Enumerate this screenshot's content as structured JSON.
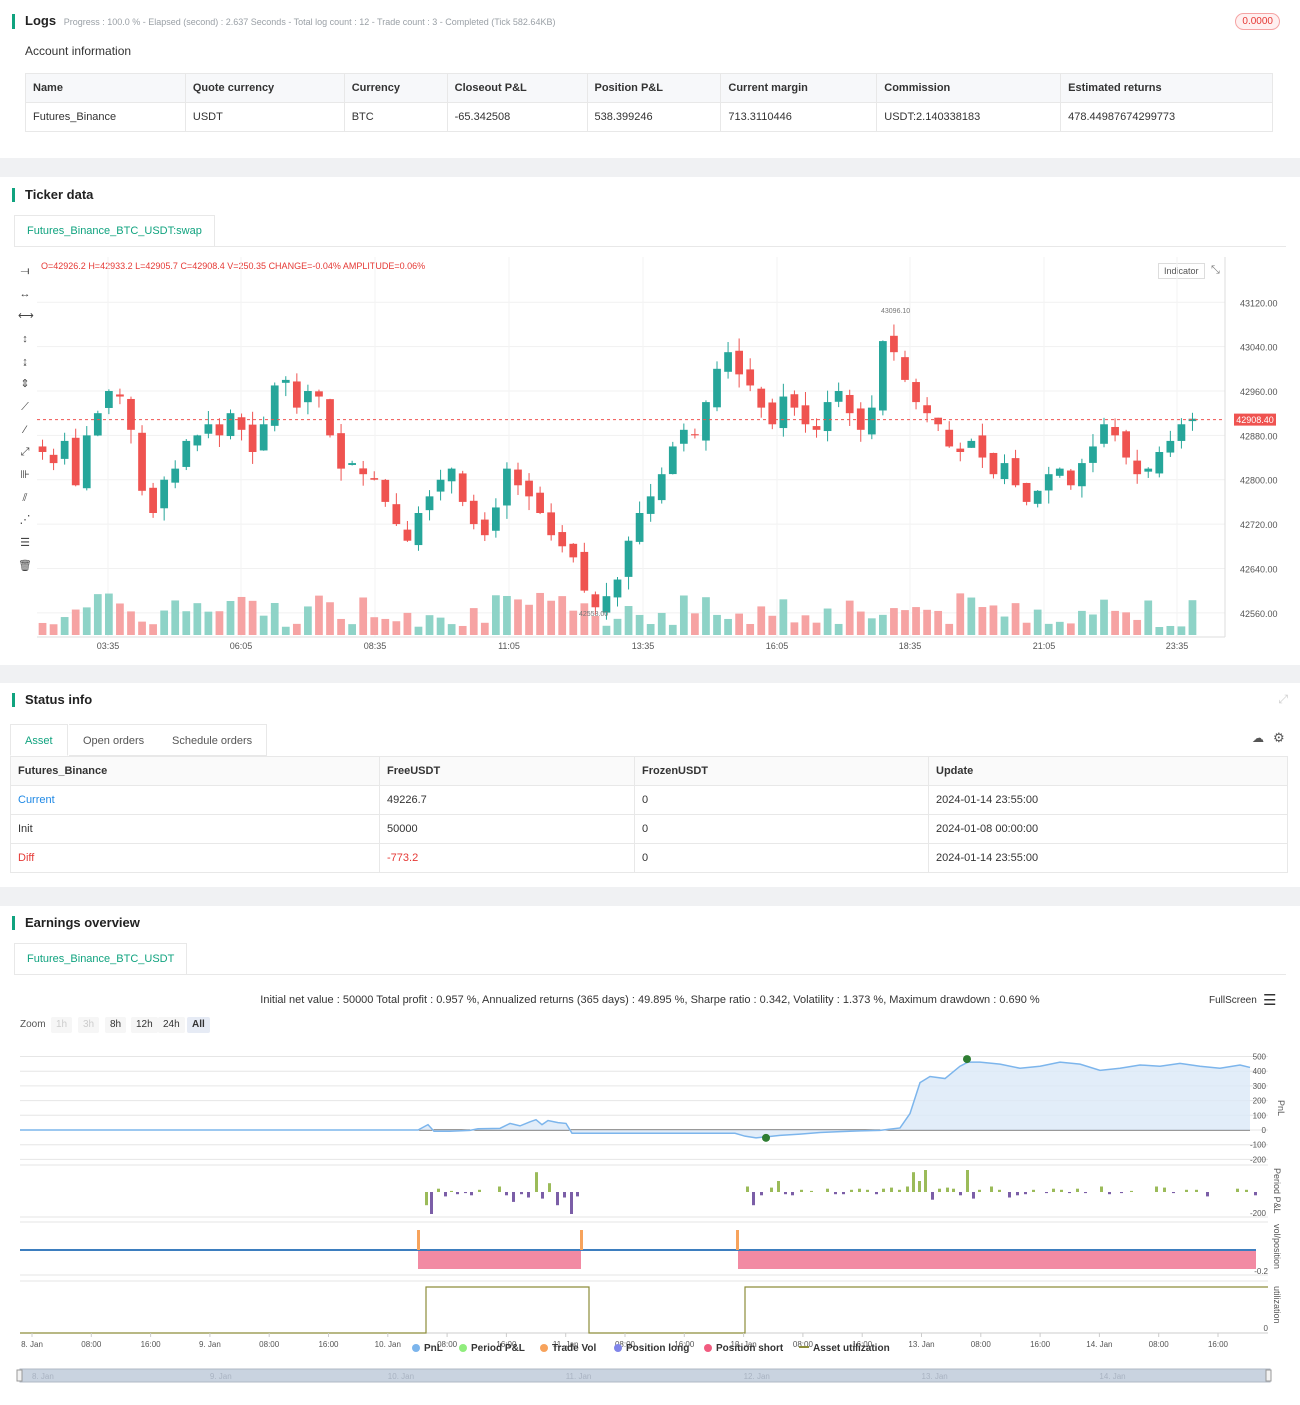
{
  "logs": {
    "title": "Logs",
    "progress_line": "Progress : 100.0 % - Elapsed (second) : 2.637  Seconds - Total log count : 12 - Trade count : 3 - Completed (Tick 582.64KB)",
    "badge": "0.0000",
    "account_label": "Account information",
    "columns": [
      "Name",
      "Quote currency",
      "Currency",
      "Closeout P&L",
      "Position P&L",
      "Current margin",
      "Commission",
      "Estimated returns"
    ],
    "row": [
      "Futures_Binance",
      "USDT",
      "BTC",
      "-65.342508",
      "538.399246",
      "713.3110446",
      "USDT:2.140338183",
      "478.44987674299773"
    ]
  },
  "ticker": {
    "title": "Ticker data",
    "tab": "Futures_Binance_BTC_USDT:swap",
    "ohlc": {
      "o": "O=42926.2",
      "h": "H=42933.2",
      "l": "L=42905.7",
      "c": "C=42908.4",
      "v": "V=250.35",
      "change": "CHANGE=-0.04%",
      "amp": "AMPLITUDE=0.06%"
    },
    "indicator_label": "Indicator",
    "last_price": "42908.40",
    "high_marker": "43096.10",
    "low_marker": "42553.00",
    "y_ticks": [
      "43120.00",
      "43040.00",
      "42960.00",
      "42880.00",
      "42800.00",
      "42720.00",
      "42640.00",
      "42560.00"
    ],
    "x_ticks": [
      "03:35",
      "06:05",
      "08:35",
      "11:05",
      "13:35",
      "16:05",
      "18:35",
      "21:05",
      "23:35"
    ],
    "colors": {
      "up": "#26a69a",
      "down": "#ef5350",
      "last": "#ef5350"
    }
  },
  "chart_data": {
    "type": "candlestick",
    "y_range": [
      42520,
      43180
    ],
    "close_series": [
      42850,
      42830,
      42870,
      42790,
      42880,
      42920,
      42960,
      42950,
      42890,
      42780,
      42740,
      42800,
      42820,
      42870,
      42880,
      42900,
      42880,
      42920,
      42890,
      42850,
      42900,
      42970,
      42980,
      42930,
      42960,
      42950,
      42880,
      42820,
      42830,
      42810,
      42800,
      42760,
      42720,
      42690,
      42740,
      42770,
      42800,
      42820,
      42760,
      42720,
      42700,
      42750,
      42820,
      42790,
      42770,
      42740,
      42700,
      42680,
      42660,
      42600,
      42570,
      42590,
      42620,
      42690,
      42740,
      42770,
      42810,
      42860,
      42890,
      42880,
      42940,
      43000,
      43030,
      42990,
      42970,
      42930,
      42900,
      42950,
      42930,
      42900,
      42890,
      42940,
      42960,
      42920,
      42890,
      42930,
      43050,
      43030,
      42980,
      42940,
      42920,
      42900,
      42860,
      42850,
      42870,
      42840,
      42810,
      42830,
      42790,
      42760,
      42780,
      42810,
      42820,
      42790,
      42830,
      42860,
      42900,
      42880,
      42840,
      42810,
      42820,
      42850,
      42870,
      42900,
      42910
    ]
  },
  "status": {
    "title": "Status info",
    "tabs": [
      "Asset",
      "Open orders",
      "Schedule orders"
    ],
    "columns": [
      "Futures_Binance",
      "FreeUSDT",
      "FrozenUSDT",
      "Update"
    ],
    "rows": [
      [
        "Current",
        "49226.7",
        "0",
        "2024-01-14 23:55:00"
      ],
      [
        "Init",
        "50000",
        "0",
        "2024-01-08 00:00:00"
      ],
      [
        "Diff",
        "-773.2",
        "0",
        "2024-01-14 23:55:00"
      ]
    ]
  },
  "earnings": {
    "title": "Earnings overview",
    "tab": "Futures_Binance_BTC_USDT",
    "summary": "Initial net value : 50000 Total profit : 0.957 %, Annualized returns (365 days) : 49.895 %, Sharpe ratio : 0.342, Volatility : 1.373 %, Maximum drawdown : 0.690 %",
    "fullscreen": "FullScreen",
    "zoom_label": "Zoom",
    "zoom_buttons": [
      "1h",
      "3h",
      "8h",
      "12h",
      "24h",
      "All"
    ],
    "pnl_ticks": [
      "500",
      "400",
      "300",
      "200",
      "100",
      "0",
      "-100",
      "-200"
    ],
    "period_tick": "-200",
    "vol_tick": "-0.2",
    "util_tick": "0",
    "axis_titles": [
      "PnL",
      "Period P&L",
      "vol/position",
      "utilization"
    ],
    "x_ticks": [
      "8. Jan",
      "08:00",
      "16:00",
      "9. Jan",
      "08:00",
      "16:00",
      "10. Jan",
      "08:00",
      "16:00",
      "11. Jan",
      "08:00",
      "16:00",
      "12. Jan",
      "08:00",
      "16:00",
      "13. Jan",
      "08:00",
      "16:00",
      "14. Jan",
      "08:00",
      "16:00"
    ],
    "legend": [
      {
        "label": "PnL",
        "color": "#7cb5ec"
      },
      {
        "label": "Period P&L",
        "color": "#90ed7d"
      },
      {
        "label": "Trade Vol",
        "color": "#f7a35c"
      },
      {
        "label": "Position long",
        "color": "#8085e9"
      },
      {
        "label": "Position short",
        "color": "#f15c80"
      },
      {
        "label": "Asset utilization",
        "color": "#8d8d3a"
      }
    ],
    "navigator_ticks": [
      "8. Jan",
      "9. Jan",
      "10. Jan",
      "11. Jan",
      "12. Jan",
      "13. Jan",
      "14. Jan"
    ]
  }
}
